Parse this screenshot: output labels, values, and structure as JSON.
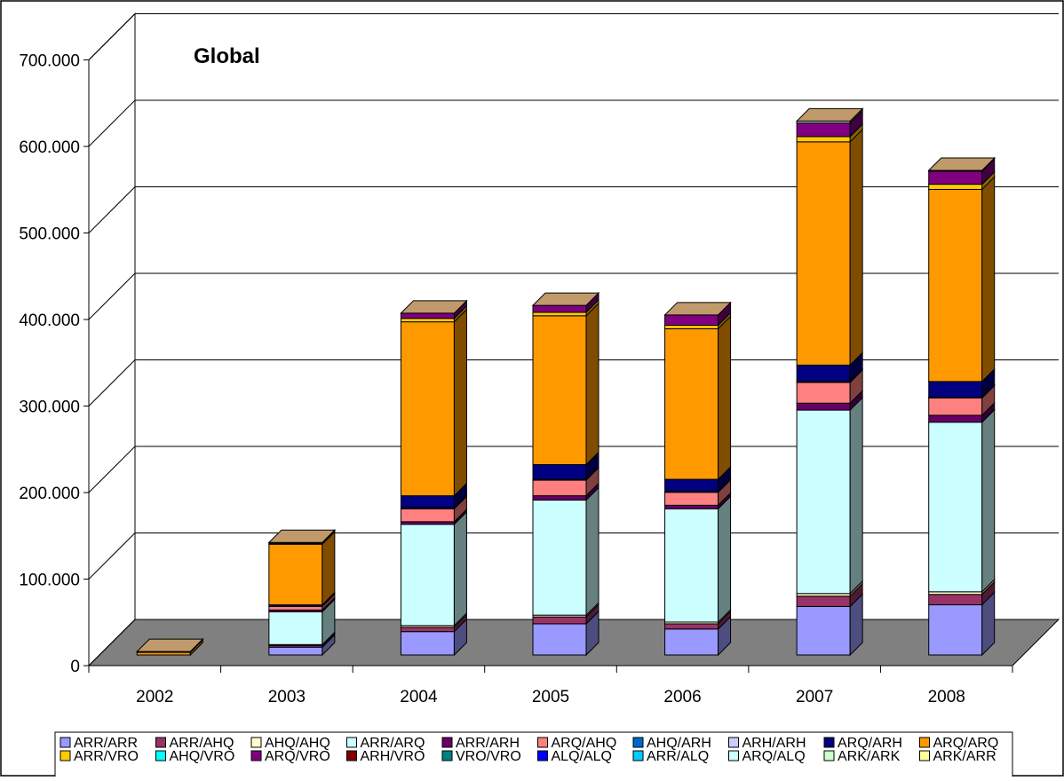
{
  "chart_data": {
    "type": "bar",
    "stacked": true,
    "three_d": true,
    "title": "Global",
    "xlabel": "",
    "ylabel": "",
    "ylim": [
      0,
      700000
    ],
    "yticks": [
      0,
      100000,
      200000,
      300000,
      400000,
      500000,
      600000,
      700000
    ],
    "ytick_labels": [
      "0",
      "100.000",
      "200.000",
      "300.000",
      "400.000",
      "500.000",
      "600.000",
      "700.000"
    ],
    "grid": true,
    "legend_position": "bottom",
    "categories": [
      "2002",
      "2003",
      "2004",
      "2005",
      "2006",
      "2007",
      "2008"
    ],
    "series": [
      {
        "name": "ARR/ARR",
        "color": "#9999ff",
        "values": [
          0,
          9000,
          27000,
          36000,
          30000,
          56000,
          58000
        ]
      },
      {
        "name": "ARR/AHQ",
        "color": "#993366",
        "values": [
          0,
          2000,
          5000,
          8000,
          6000,
          12000,
          12000
        ]
      },
      {
        "name": "AHQ/AHQ",
        "color": "#ffffcc",
        "values": [
          0,
          1000,
          2000,
          2000,
          2000,
          3000,
          3000
        ]
      },
      {
        "name": "ARR/ARQ",
        "color": "#ccffff",
        "values": [
          0,
          38000,
          117000,
          133000,
          131000,
          212000,
          196000
        ]
      },
      {
        "name": "ARR/ARH",
        "color": "#660066",
        "values": [
          0,
          2000,
          3000,
          5000,
          4000,
          8000,
          8000
        ]
      },
      {
        "name": "ARQ/AHQ",
        "color": "#ff8080",
        "values": [
          0,
          4000,
          15000,
          18000,
          15000,
          24000,
          20000
        ]
      },
      {
        "name": "AHQ/ARH",
        "color": "#0066cc",
        "values": [
          0,
          0,
          0,
          0,
          0,
          0,
          0
        ]
      },
      {
        "name": "ARH/ARH",
        "color": "#ccccff",
        "values": [
          0,
          0,
          1000,
          1000,
          1000,
          1000,
          1000
        ]
      },
      {
        "name": "ARQ/ARH",
        "color": "#000080",
        "values": [
          0,
          2000,
          14000,
          17000,
          14000,
          19000,
          18000
        ]
      },
      {
        "name": "ARQ/ARQ",
        "color": "#ff9900",
        "values": [
          3000,
          70000,
          201000,
          172000,
          174000,
          258000,
          222000
        ]
      },
      {
        "name": "ARR/VRO",
        "color": "#ffcc00",
        "values": [
          1000,
          1000,
          4000,
          4000,
          4000,
          6000,
          6000
        ]
      },
      {
        "name": "AHQ/VRO",
        "color": "#00ffff",
        "values": [
          0,
          0,
          0,
          0,
          0,
          0,
          0
        ]
      },
      {
        "name": "ARQ/VRO",
        "color": "#800080",
        "values": [
          0,
          1000,
          6000,
          8000,
          12000,
          16000,
          15000
        ]
      },
      {
        "name": "ARH/VRO",
        "color": "#800000",
        "values": [
          0,
          0,
          0,
          0,
          0,
          0,
          0
        ]
      },
      {
        "name": "VRO/VRO",
        "color": "#008080",
        "values": [
          0,
          0,
          0,
          0,
          0,
          0,
          0
        ]
      },
      {
        "name": "ALQ/ALQ",
        "color": "#0000ff",
        "values": [
          0,
          0,
          0,
          0,
          0,
          0,
          0
        ]
      },
      {
        "name": "ARR/ALQ",
        "color": "#00ccff",
        "values": [
          0,
          0,
          0,
          0,
          0,
          0,
          0
        ]
      },
      {
        "name": "ARQ/ALQ",
        "color": "#ccffff",
        "values": [
          0,
          0,
          0,
          0,
          0,
          2000,
          1000
        ]
      },
      {
        "name": "ARK/ARK",
        "color": "#ccffcc",
        "values": [
          0,
          0,
          0,
          0,
          0,
          0,
          0
        ]
      },
      {
        "name": "ARK/ARR",
        "color": "#ffff99",
        "values": [
          0,
          0,
          0,
          0,
          0,
          0,
          0
        ]
      }
    ]
  }
}
